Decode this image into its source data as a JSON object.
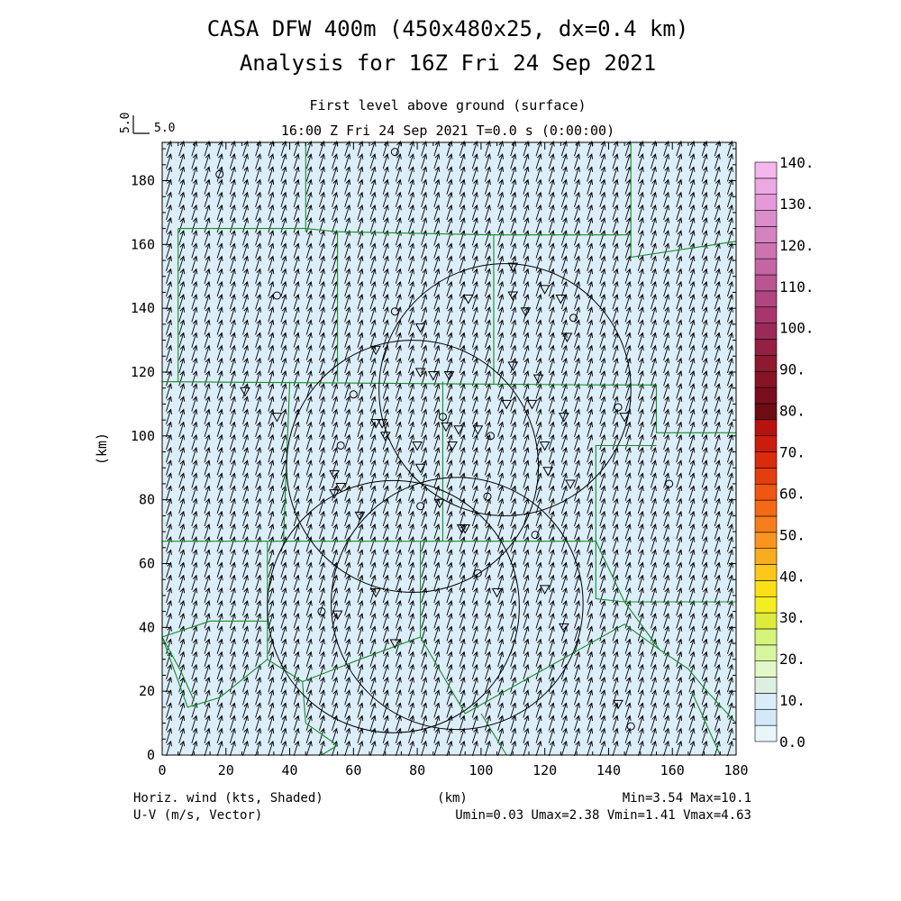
{
  "title_line1": "CASA DFW 400m (450x480x25, dx=0.4 km)",
  "title_line2": "Analysis for 16Z Fri 24 Sep 2021",
  "subtitle_level": "First level above ground (surface)",
  "subtitle_time": "16:00 Z Fri 24 Sep 2021     T=0.0 s (0:00:00)",
  "vector_scale_label": "5.0",
  "vector_scale_label2": "5.0",
  "footer": {
    "left1": "Horiz. wind (kts, Shaded)",
    "left2": "U-V (m/s, Vector)",
    "center": "(km)",
    "right1": "Min=3.54 Max=10.1",
    "right2": "Umin=0.03 Umax=2.38 Vmin=1.41 Vmax=4.63"
  },
  "chart_data": {
    "type": "heatmap",
    "field_name": "Horiz. wind (kts, Shaded)",
    "vector_name": "U-V (m/s, Vector)",
    "xlabel": "(km)",
    "ylabel": "(km)",
    "xlim": [
      0,
      180
    ],
    "ylim": [
      0,
      192
    ],
    "x_ticks": [
      "0",
      "20",
      "40",
      "60",
      "80",
      "100",
      "120",
      "140",
      "160",
      "180"
    ],
    "y_ticks": [
      "0",
      "20",
      "40",
      "60",
      "80",
      "100",
      "120",
      "140",
      "160",
      "180"
    ],
    "stats": {
      "min": 3.54,
      "max": 10.1,
      "umin": 0.03,
      "umax": 2.38,
      "vmin": 1.41,
      "vmax": 4.63
    },
    "field_fill_color": "#dceefa",
    "colorbar": {
      "ticks": [
        "0.0",
        "10.",
        "20.",
        "30.",
        "40.",
        "50.",
        "60.",
        "70.",
        "80.",
        "90.",
        "100.",
        "110.",
        "120.",
        "130.",
        "140."
      ],
      "colors": [
        "#e8f6fb",
        "#d4e8f8",
        "#d8ecfa",
        "#dcefe0",
        "#e4f7c8",
        "#d8f5a0",
        "#d4f47a",
        "#dceb3c",
        "#f2ee22",
        "#fbe017",
        "#fbc81a",
        "#f8ad1e",
        "#f9951f",
        "#f77d1b",
        "#f46a14",
        "#ef5612",
        "#e43e0f",
        "#da2c0d",
        "#cc1c10",
        "#b8120f",
        "#6e0c14",
        "#7a0e1c",
        "#861424",
        "#8e1a32",
        "#952044",
        "#9c2a58",
        "#a8366c",
        "#b14580",
        "#ba5592",
        "#c465a4",
        "#cc73b0",
        "#d482c0",
        "#dc8ecc",
        "#e49ad8",
        "#eca8e2",
        "#f4b6ec"
      ]
    },
    "wind_vector": {
      "u": 1.2,
      "v": 3.8,
      "units": "m/s",
      "grid_spacing_km": 4
    },
    "range_rings": [
      {
        "cx": 72.5,
        "cy": 46.5,
        "r": 39.5
      },
      {
        "cx": 92.5,
        "cy": 47.5,
        "r": 39.5
      },
      {
        "cx": 78.5,
        "cy": 90.5,
        "r": 39.5
      },
      {
        "cx": 107.5,
        "cy": 114.5,
        "r": 39.5
      }
    ],
    "stations_triangle": [
      [
        26,
        114
      ],
      [
        36,
        106
      ],
      [
        54,
        82
      ],
      [
        56,
        84
      ],
      [
        62,
        75
      ],
      [
        67,
        127
      ],
      [
        67,
        104
      ],
      [
        69,
        104
      ],
      [
        70,
        100
      ],
      [
        80,
        97
      ],
      [
        81,
        120
      ],
      [
        81,
        134
      ],
      [
        85,
        119
      ],
      [
        89,
        103
      ],
      [
        90,
        119
      ],
      [
        91,
        97
      ],
      [
        93,
        102
      ],
      [
        95,
        71
      ],
      [
        94,
        71
      ],
      [
        96,
        143
      ],
      [
        99,
        102
      ],
      [
        105,
        51
      ],
      [
        108,
        110
      ],
      [
        110,
        144
      ],
      [
        110,
        122
      ],
      [
        110,
        153
      ],
      [
        114,
        139
      ],
      [
        116,
        110
      ],
      [
        118,
        118
      ],
      [
        120,
        146
      ],
      [
        120,
        97
      ],
      [
        121,
        89
      ],
      [
        120,
        52
      ],
      [
        125,
        143
      ],
      [
        126,
        106
      ],
      [
        126,
        40
      ],
      [
        127,
        131
      ],
      [
        128,
        85
      ],
      [
        143,
        16
      ],
      [
        145,
        106
      ],
      [
        55,
        44
      ],
      [
        73,
        35
      ],
      [
        81,
        90
      ],
      [
        67,
        51
      ],
      [
        54,
        88
      ],
      [
        87,
        79
      ]
    ],
    "stations_circle": [
      [
        18,
        182
      ],
      [
        36,
        144
      ],
      [
        60,
        113
      ],
      [
        56,
        97
      ],
      [
        73,
        189
      ],
      [
        73,
        139
      ],
      [
        88,
        106
      ],
      [
        103,
        100
      ],
      [
        102,
        81
      ],
      [
        81,
        78
      ],
      [
        99,
        57
      ],
      [
        117,
        69
      ],
      [
        129,
        137
      ],
      [
        143,
        109
      ],
      [
        147,
        9
      ],
      [
        159,
        85
      ],
      [
        50,
        45
      ]
    ],
    "county_lines": [
      [
        [
          45,
          192
        ],
        [
          45,
          164
        ]
      ],
      [
        [
          5,
          165
        ],
        [
          45,
          165
        ],
        [
          55,
          164
        ],
        [
          55,
          117
        ]
      ],
      [
        [
          5,
          165
        ],
        [
          5,
          117
        ]
      ],
      [
        [
          0,
          117
        ],
        [
          136,
          116
        ],
        [
          155,
          116
        ],
        [
          155,
          101
        ],
        [
          180,
          101
        ]
      ],
      [
        [
          55,
          164
        ],
        [
          104,
          163
        ],
        [
          104,
          116
        ]
      ],
      [
        [
          104,
          163
        ],
        [
          147,
          163
        ],
        [
          147,
          156
        ],
        [
          180,
          161
        ]
      ],
      [
        [
          147,
          192
        ],
        [
          147,
          163
        ]
      ],
      [
        [
          40,
          117
        ],
        [
          38,
          67
        ]
      ],
      [
        [
          0,
          67
        ],
        [
          136,
          67
        ],
        [
          136,
          97
        ],
        [
          155,
          97
        ]
      ],
      [
        [
          88,
          117
        ],
        [
          88,
          67
        ]
      ],
      [
        [
          0,
          67
        ],
        [
          0,
          37
        ],
        [
          15,
          42
        ],
        [
          33,
          42
        ],
        [
          33,
          67
        ]
      ],
      [
        [
          33,
          42
        ],
        [
          33,
          30
        ],
        [
          44,
          23
        ],
        [
          62,
          30
        ],
        [
          81,
          37
        ]
      ],
      [
        [
          0,
          37
        ],
        [
          8,
          15
        ],
        [
          18,
          18
        ],
        [
          33,
          30
        ]
      ],
      [
        [
          81,
          37
        ],
        [
          81,
          67
        ]
      ],
      [
        [
          81,
          37
        ],
        [
          95,
          13
        ],
        [
          145,
          41
        ],
        [
          156,
          33
        ],
        [
          165,
          27
        ],
        [
          170,
          21
        ],
        [
          180,
          10
        ]
      ],
      [
        [
          136,
          67
        ],
        [
          145,
          48
        ],
        [
          180,
          48
        ],
        [
          180,
          101
        ]
      ],
      [
        [
          44,
          23
        ],
        [
          45,
          10
        ],
        [
          55,
          3
        ],
        [
          50,
          0
        ]
      ],
      [
        [
          100,
          13
        ],
        [
          108,
          0
        ]
      ],
      [
        [
          0,
          37
        ],
        [
          6,
          26
        ],
        [
          10,
          17
        ]
      ],
      [
        [
          145,
          48
        ],
        [
          156,
          33
        ]
      ],
      [
        [
          166,
          20
        ],
        [
          175,
          0
        ]
      ],
      [
        [
          136,
          67
        ],
        [
          136,
          49
        ],
        [
          145,
          48
        ]
      ]
    ]
  }
}
